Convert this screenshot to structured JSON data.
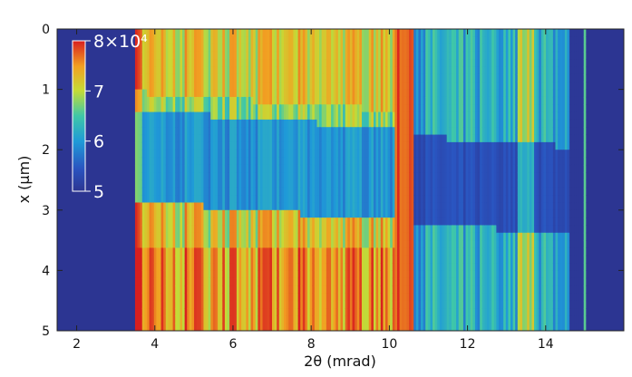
{
  "chart_data": {
    "type": "heatmap",
    "title": "",
    "xlabel": "2θ (mrad)",
    "ylabel": "x (μm)",
    "xlim": [
      1.5,
      16.0
    ],
    "ylim": [
      5,
      0
    ],
    "xticks": [
      2,
      4,
      6,
      8,
      10,
      12,
      14
    ],
    "yticks": [
      0,
      1,
      2,
      3,
      4,
      5
    ],
    "colorbar": {
      "range": [
        5,
        8
      ],
      "ticks": [
        {
          "value": 8,
          "label": "8×10⁴"
        },
        {
          "value": 7,
          "label": "7"
        },
        {
          "value": 6,
          "label": "6"
        },
        {
          "value": 5,
          "label": "5"
        }
      ],
      "colormap": "jet",
      "placement": "top-left (inset)"
    },
    "background_value": 5,
    "bands": [
      {
        "x0": 3.5,
        "x1": 10.2,
        "description": "bright diffraction streaks; high intensity for x 0–1.2 and 3.0–5; low for x 1.6–2.9"
      },
      {
        "x0": 10.2,
        "x1": 10.6,
        "description": "very bright vertical stripe (~8×10⁴)"
      },
      {
        "x0": 10.6,
        "x1": 14.6,
        "description": "moderate intensity, 5.5–7"
      },
      {
        "x0": 15.0,
        "x1": 15.05,
        "description": "thin bright line"
      }
    ],
    "grid": false
  }
}
